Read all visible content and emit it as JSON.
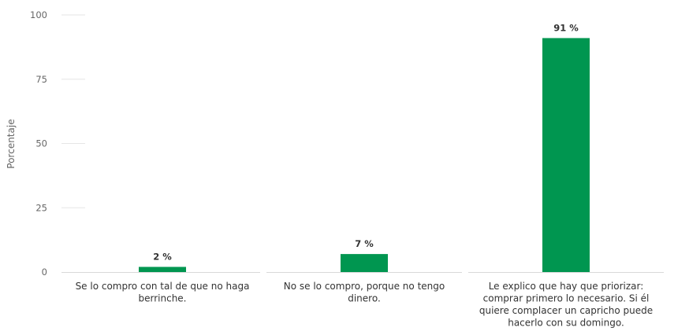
{
  "chart_data": {
    "type": "bar",
    "ylabel": "Porcentaje",
    "ylim": [
      0,
      100
    ],
    "yticks": [
      "0",
      "25",
      "50",
      "75",
      "100"
    ],
    "bar_color": "#009650",
    "categories": [
      [
        "Se lo compro con tal de que no haga",
        "berrinche."
      ],
      [
        "No se lo compro, porque no tengo",
        "dinero."
      ],
      [
        "Le explico que hay que priorizar:",
        "comprar primero lo necesario. Si él",
        "quiere complacer un capricho puede",
        "hacerlo con su domingo."
      ]
    ],
    "values": [
      2,
      7,
      91
    ],
    "data_labels": [
      "2 %",
      "7 %",
      "91 %"
    ]
  }
}
